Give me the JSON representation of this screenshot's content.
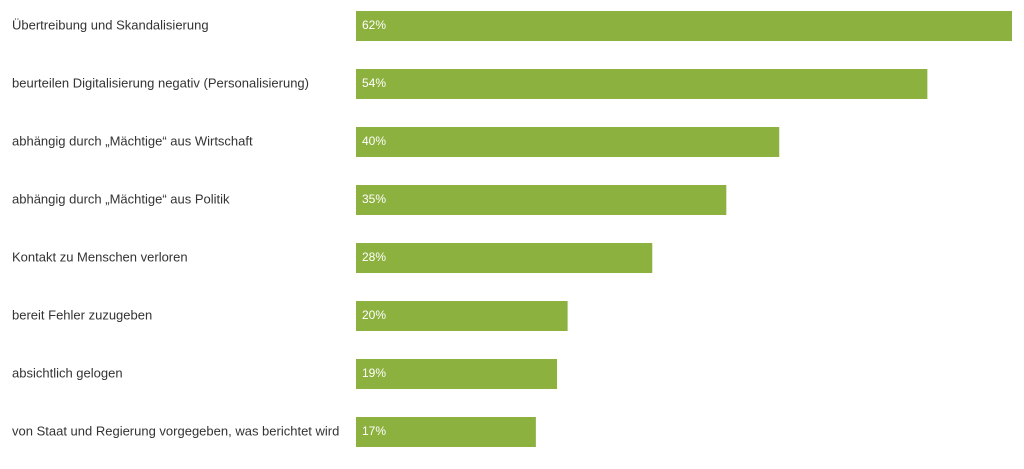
{
  "chart_data": {
    "type": "bar",
    "orientation": "horizontal",
    "categories": [
      "Übertreibung und Skandalisierung",
      "beurteilen Digitalisierung negativ (Personalisierung)",
      "abhängig durch „Mächtige“ aus Wirtschaft",
      "abhängig durch „Mächtige“ aus Politik",
      "Kontakt zu Menschen verloren",
      "bereit Fehler zuzugeben",
      "absichtlich gelogen",
      "von Staat und Regierung vorgegeben, was berichtet wird"
    ],
    "values": [
      62,
      54,
      40,
      35,
      28,
      20,
      19,
      17
    ],
    "value_labels": [
      "62%",
      "54%",
      "40%",
      "35%",
      "28%",
      "20%",
      "19%",
      "17%"
    ],
    "color": "#8cb13e"
  }
}
